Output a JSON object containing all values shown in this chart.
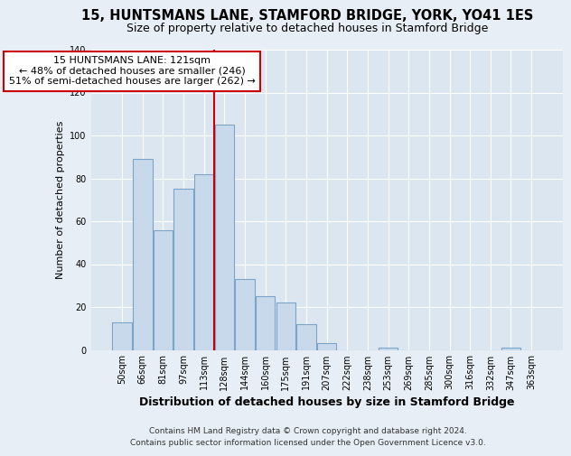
{
  "title": "15, HUNTSMANS LANE, STAMFORD BRIDGE, YORK, YO41 1ES",
  "subtitle": "Size of property relative to detached houses in Stamford Bridge",
  "xlabel": "Distribution of detached houses by size in Stamford Bridge",
  "ylabel": "Number of detached properties",
  "bin_labels": [
    "50sqm",
    "66sqm",
    "81sqm",
    "97sqm",
    "113sqm",
    "128sqm",
    "144sqm",
    "160sqm",
    "175sqm",
    "191sqm",
    "207sqm",
    "222sqm",
    "238sqm",
    "253sqm",
    "269sqm",
    "285sqm",
    "300sqm",
    "316sqm",
    "332sqm",
    "347sqm",
    "363sqm"
  ],
  "bar_values": [
    13,
    89,
    56,
    75,
    82,
    105,
    33,
    25,
    22,
    12,
    3,
    0,
    0,
    1,
    0,
    0,
    0,
    0,
    0,
    1,
    0
  ],
  "bar_color": "#c9d9ec",
  "bar_edge_color": "#7ba4c7",
  "vline_x_idx": 5,
  "vline_color": "#cc0000",
  "annotation_text": "15 HUNTSMANS LANE: 121sqm\n← 48% of detached houses are smaller (246)\n51% of semi-detached houses are larger (262) →",
  "annotation_box_color": "#ffffff",
  "annotation_box_edge_color": "#cc0000",
  "ylim": [
    0,
    140
  ],
  "yticks": [
    0,
    20,
    40,
    60,
    80,
    100,
    120,
    140
  ],
  "footer_text": "Contains HM Land Registry data © Crown copyright and database right 2024.\nContains public sector information licensed under the Open Government Licence v3.0.",
  "background_color": "#e8eef5",
  "plot_background_color": "#dce6f0",
  "grid_color": "#ffffff",
  "title_fontsize": 10.5,
  "subtitle_fontsize": 9,
  "xlabel_fontsize": 9,
  "ylabel_fontsize": 8,
  "tick_fontsize": 7,
  "annotation_fontsize": 8,
  "footer_fontsize": 6.5
}
